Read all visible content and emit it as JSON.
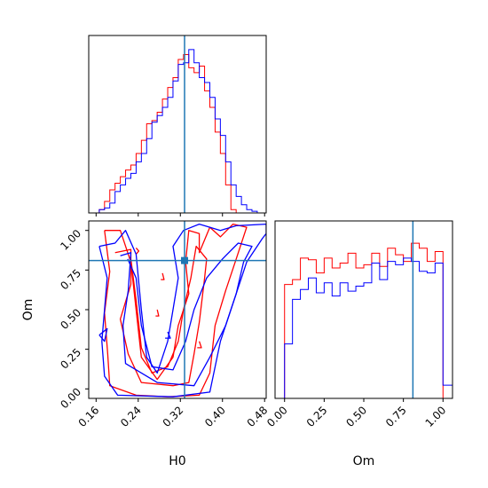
{
  "figure": {
    "x_param_label": "H0",
    "y_param_label": "Om"
  },
  "colors": {
    "series_a": "#ff0000",
    "series_b": "#0000ff",
    "truth_marker": "#1f77b4"
  },
  "chart_data": [
    {
      "panel": "H0 marginal",
      "type": "step histogram",
      "xlim": [
        0.146,
        0.483
      ],
      "x_tick_labels": [
        "0.16",
        "0.24",
        "0.32",
        "0.40",
        "0.48"
      ],
      "truth_x": 0.328,
      "y_ticks_shown": false,
      "bin_edges": [
        0.166,
        0.176,
        0.186,
        0.196,
        0.206,
        0.216,
        0.226,
        0.236,
        0.246,
        0.256,
        0.266,
        0.276,
        0.286,
        0.296,
        0.306,
        0.316,
        0.326,
        0.336,
        0.346,
        0.356,
        0.366,
        0.376,
        0.386,
        0.396,
        0.406,
        0.416,
        0.426,
        0.436,
        0.446,
        0.456,
        0.466,
        0.476
      ],
      "series": [
        {
          "name": "",
          "color": "#ff0000",
          "counts": [
            0.02,
            0.07,
            0.14,
            0.18,
            0.22,
            0.26,
            0.29,
            0.36,
            0.44,
            0.54,
            0.56,
            0.61,
            0.69,
            0.76,
            0.82,
            0.93,
            0.96,
            0.88,
            0.85,
            0.89,
            0.74,
            0.64,
            0.49,
            0.36,
            0.17,
            0.02,
            0,
            0,
            0,
            0,
            0
          ]
        },
        {
          "name": "",
          "color": "#0000ff",
          "counts": [
            0.02,
            0.03,
            0.06,
            0.13,
            0.17,
            0.21,
            0.24,
            0.31,
            0.36,
            0.45,
            0.55,
            0.59,
            0.64,
            0.7,
            0.8,
            0.9,
            0.91,
            0.99,
            0.91,
            0.82,
            0.79,
            0.7,
            0.57,
            0.47,
            0.31,
            0.17,
            0.1,
            0.05,
            0.02,
            0.01,
            0
          ]
        }
      ]
    },
    {
      "panel": "H0 vs Om joint",
      "type": "contour",
      "xlim": [
        0.146,
        0.483
      ],
      "ylim": [
        -0.06,
        1.06
      ],
      "x_tick_labels": [
        "0.16",
        "0.24",
        "0.32",
        "0.40",
        "0.48"
      ],
      "y_tick_labels": [
        "0.00",
        "0.25",
        "0.50",
        "0.75",
        "1.00"
      ],
      "xlabel": "H0",
      "ylabel": "Om",
      "truth": {
        "x": 0.328,
        "y": 0.81
      },
      "contours": [
        {
          "color": "#ff0000",
          "points": [
            [
              0.176,
              1.0
            ],
            [
              0.186,
              0.74
            ],
            [
              0.176,
              0.48
            ],
            [
              0.182,
              0.22
            ],
            [
              0.186,
              0.02
            ],
            [
              0.236,
              -0.04
            ],
            [
              0.296,
              -0.05
            ],
            [
              0.356,
              -0.04
            ],
            [
              0.376,
              0.1
            ],
            [
              0.386,
              0.4
            ],
            [
              0.406,
              0.62
            ],
            [
              0.426,
              0.82
            ],
            [
              0.446,
              1.02
            ],
            [
              0.42,
              1.04
            ],
            [
              0.396,
              0.96
            ],
            [
              0.376,
              1.02
            ],
            [
              0.356,
              0.86
            ],
            [
              0.356,
              0.98
            ],
            [
              0.336,
              1.0
            ],
            [
              0.33,
              0.8
            ],
            [
              0.336,
              0.6
            ],
            [
              0.316,
              0.4
            ],
            [
              0.306,
              0.2
            ],
            [
              0.276,
              0.06
            ],
            [
              0.246,
              0.2
            ],
            [
              0.236,
              0.5
            ],
            [
              0.226,
              0.8
            ],
            [
              0.206,
              1.0
            ],
            [
              0.176,
              1.0
            ]
          ]
        },
        {
          "color": "#ff0000",
          "points": [
            [
              0.196,
              0.86
            ],
            [
              0.226,
              0.88
            ],
            [
              0.226,
              0.66
            ],
            [
              0.206,
              0.44
            ],
            [
              0.221,
              0.22
            ],
            [
              0.246,
              0.04
            ],
            [
              0.306,
              0.02
            ],
            [
              0.336,
              0.04
            ],
            [
              0.346,
              0.22
            ],
            [
              0.356,
              0.42
            ],
            [
              0.366,
              0.7
            ],
            [
              0.37,
              0.82
            ],
            [
              0.35,
              0.9
            ],
            [
              0.34,
              0.7
            ],
            [
              0.326,
              0.5
            ],
            [
              0.316,
              0.3
            ],
            [
              0.296,
              0.14
            ],
            [
              0.266,
              0.1
            ],
            [
              0.246,
              0.26
            ],
            [
              0.236,
              0.56
            ],
            [
              0.226,
              0.82
            ]
          ]
        },
        {
          "color": "#ff0000",
          "points": [
            [
              0.236,
              0.85
            ],
            [
              0.241,
              0.87
            ],
            [
              0.236,
              0.89
            ]
          ]
        },
        {
          "color": "#ff0000",
          "points": [
            [
              0.286,
              0.73
            ],
            [
              0.289,
              0.69
            ],
            [
              0.283,
              0.69
            ]
          ]
        },
        {
          "color": "#ff0000",
          "points": [
            [
              0.276,
              0.5
            ],
            [
              0.279,
              0.46
            ],
            [
              0.273,
              0.46
            ]
          ]
        },
        {
          "color": "#ff0000",
          "points": [
            [
              0.356,
              0.3
            ],
            [
              0.36,
              0.26
            ],
            [
              0.352,
              0.26
            ]
          ]
        },
        {
          "color": "#0000ff",
          "points": [
            [
              0.166,
              0.9
            ],
            [
              0.181,
              0.7
            ],
            [
              0.176,
              0.5
            ],
            [
              0.171,
              0.3
            ],
            [
              0.176,
              0.08
            ],
            [
              0.201,
              -0.04
            ],
            [
              0.306,
              -0.05
            ],
            [
              0.376,
              -0.02
            ],
            [
              0.396,
              0.3
            ],
            [
              0.426,
              0.6
            ],
            [
              0.446,
              0.8
            ],
            [
              0.476,
              0.95
            ],
            [
              0.483,
              0.98
            ],
            [
              0.483,
              1.04
            ],
            [
              0.426,
              1.03
            ],
            [
              0.396,
              1.0
            ],
            [
              0.356,
              1.04
            ],
            [
              0.326,
              1.0
            ],
            [
              0.306,
              0.9
            ],
            [
              0.316,
              0.7
            ],
            [
              0.306,
              0.5
            ],
            [
              0.296,
              0.3
            ],
            [
              0.276,
              0.1
            ],
            [
              0.256,
              0.2
            ],
            [
              0.246,
              0.5
            ],
            [
              0.236,
              0.85
            ],
            [
              0.216,
              1.0
            ],
            [
              0.196,
              0.92
            ],
            [
              0.166,
              0.9
            ]
          ]
        },
        {
          "color": "#0000ff",
          "points": [
            [
              0.206,
              0.84
            ],
            [
              0.226,
              0.86
            ],
            [
              0.221,
              0.62
            ],
            [
              0.211,
              0.4
            ],
            [
              0.216,
              0.16
            ],
            [
              0.276,
              0.04
            ],
            [
              0.346,
              0.02
            ],
            [
              0.376,
              0.2
            ],
            [
              0.406,
              0.4
            ],
            [
              0.426,
              0.6
            ],
            [
              0.44,
              0.8
            ],
            [
              0.456,
              0.9
            ],
            [
              0.43,
              0.92
            ],
            [
              0.4,
              0.82
            ],
            [
              0.37,
              0.7
            ],
            [
              0.346,
              0.5
            ],
            [
              0.33,
              0.3
            ],
            [
              0.306,
              0.12
            ],
            [
              0.266,
              0.14
            ],
            [
              0.246,
              0.4
            ],
            [
              0.236,
              0.7
            ],
            [
              0.22,
              0.82
            ]
          ]
        },
        {
          "color": "#0000ff",
          "points": [
            [
              0.166,
              0.34
            ],
            [
              0.181,
              0.38
            ],
            [
              0.176,
              0.3
            ],
            [
              0.166,
              0.34
            ]
          ]
        },
        {
          "color": "#0000ff",
          "points": [
            [
              0.296,
              0.36
            ],
            [
              0.301,
              0.32
            ],
            [
              0.291,
              0.32
            ]
          ]
        }
      ]
    },
    {
      "panel": "Om marginal",
      "type": "step histogram",
      "xlim": [
        -0.06,
        1.06
      ],
      "x_tick_labels": [
        "0.00",
        "0.25",
        "0.50",
        "0.75",
        "1.00"
      ],
      "xlabel": "Om",
      "truth_x": 0.81,
      "y_ticks_shown": false,
      "bin_edges": [
        -0.06,
        0,
        0.05,
        0.1,
        0.15,
        0.2,
        0.25,
        0.3,
        0.35,
        0.4,
        0.45,
        0.5,
        0.55,
        0.6,
        0.65,
        0.7,
        0.75,
        0.8,
        0.85,
        0.9,
        0.95,
        1.0,
        1.06
      ],
      "series": [
        {
          "name": "",
          "color": "#ff0000",
          "counts": [
            0,
            0.69,
            0.72,
            0.85,
            0.84,
            0.76,
            0.85,
            0.79,
            0.82,
            0.88,
            0.79,
            0.81,
            0.88,
            0.8,
            0.91,
            0.87,
            0.83,
            0.94,
            0.91,
            0.83,
            0.89,
            0
          ]
        },
        {
          "name": "",
          "color": "#0000ff",
          "counts": [
            0,
            0.33,
            0.6,
            0.66,
            0.73,
            0.64,
            0.7,
            0.62,
            0.7,
            0.65,
            0.68,
            0.7,
            0.82,
            0.72,
            0.83,
            0.81,
            0.85,
            0.83,
            0.77,
            0.76,
            0.82,
            0.08
          ]
        }
      ]
    }
  ]
}
